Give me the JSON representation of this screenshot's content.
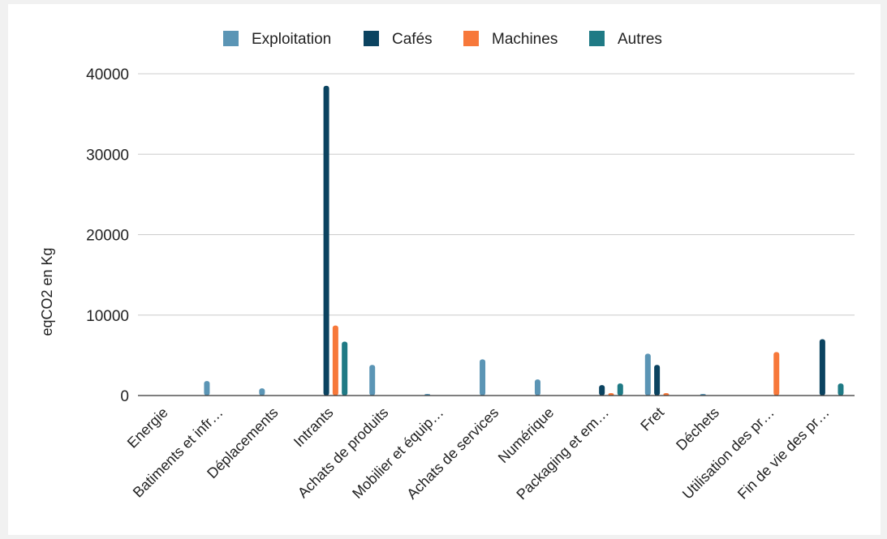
{
  "chart_data": {
    "type": "bar",
    "categories": [
      "Energie",
      "Batiments et infr…",
      "Déplacements",
      "Intrants",
      "Achats de produits",
      "Mobilier et équip…",
      "Achats de services",
      "Numérique",
      "Packaging et em…",
      "Fret",
      "Déchets",
      "Utilisation des pr…",
      "Fin de vie des pr…"
    ],
    "series": [
      {
        "name": "Exploitation",
        "color": "#5b95b5",
        "values": [
          0,
          1800,
          900,
          0,
          3800,
          200,
          4500,
          2000,
          0,
          5200,
          200,
          0,
          0
        ]
      },
      {
        "name": "Cafés",
        "color": "#0b4360",
        "values": [
          0,
          0,
          0,
          38500,
          0,
          0,
          0,
          0,
          1300,
          3800,
          0,
          0,
          7000
        ]
      },
      {
        "name": "Machines",
        "color": "#f7783a",
        "values": [
          0,
          0,
          0,
          8700,
          0,
          0,
          0,
          0,
          300,
          300,
          0,
          5400,
          0
        ]
      },
      {
        "name": "Autres",
        "color": "#1f7a85",
        "values": [
          0,
          0,
          0,
          6700,
          0,
          0,
          0,
          0,
          1500,
          0,
          0,
          0,
          1500
        ]
      }
    ],
    "yticks": [
      "0",
      "10000",
      "20000",
      "30000",
      "40000"
    ],
    "ylim": [
      0,
      40000
    ],
    "xlabel": "",
    "ylabel": "eqCO2 en Kg",
    "grid": true,
    "legend_position": "top"
  }
}
